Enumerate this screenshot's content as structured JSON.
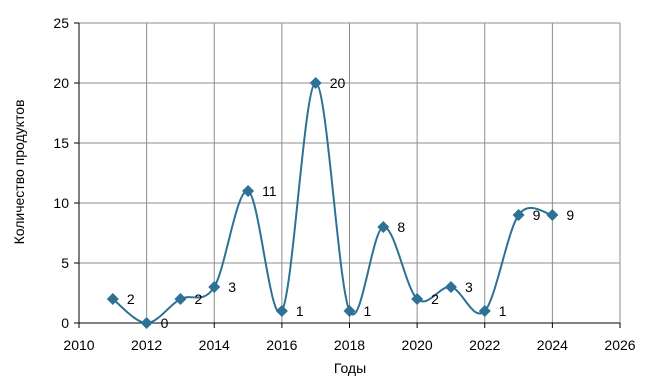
{
  "chart_data": {
    "type": "scatter",
    "title": "",
    "xlabel": "Годы",
    "ylabel": "Количество продуктов",
    "xlim": [
      2010,
      2026
    ],
    "ylim": [
      0,
      25
    ],
    "xticks": [
      2010,
      2012,
      2014,
      2016,
      2018,
      2020,
      2022,
      2024,
      2026
    ],
    "yticks": [
      0,
      5,
      10,
      15,
      20,
      25
    ],
    "grid": true,
    "legend": "none",
    "line_style": "smoothed",
    "marker": "diamond",
    "series": [
      {
        "x": [
          2011,
          2012,
          2013,
          2014,
          2015,
          2016,
          2017,
          2018,
          2019,
          2020,
          2021,
          2022,
          2023,
          2024
        ],
        "y": [
          2,
          0,
          2,
          3,
          11,
          1,
          20,
          1,
          8,
          2,
          3,
          1,
          9,
          9
        ],
        "color": "#2e7195"
      }
    ]
  }
}
